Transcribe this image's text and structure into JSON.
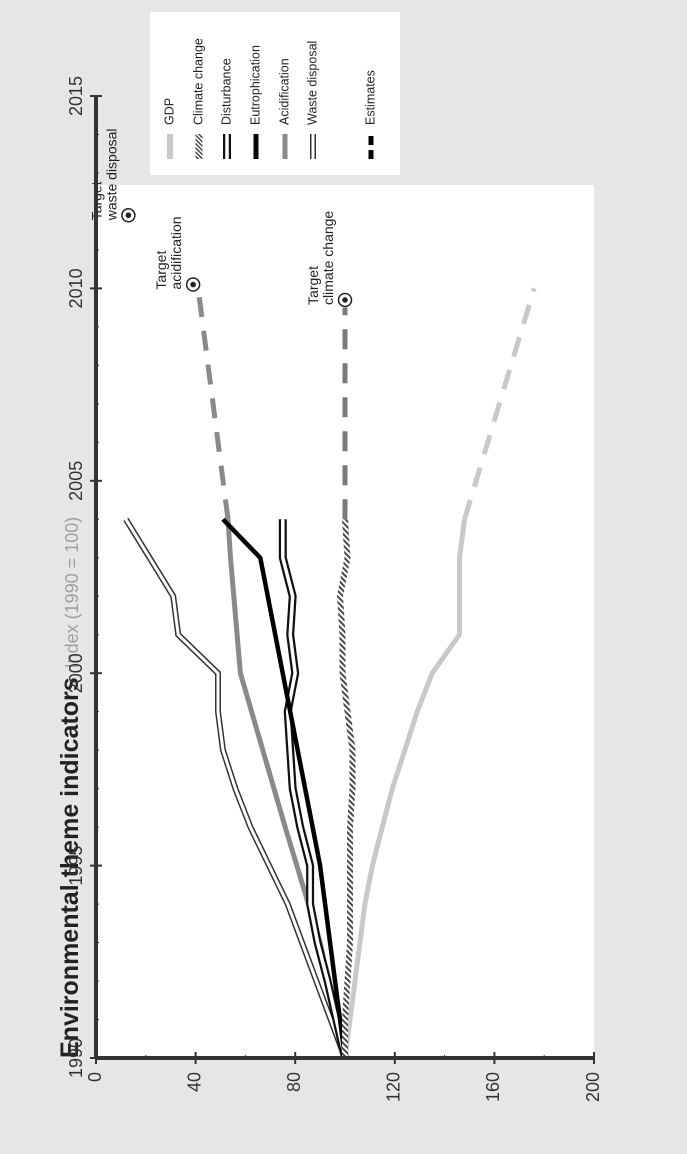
{
  "chart_data": {
    "type": "line",
    "title": "Environmental theme indicators",
    "subtitle": "Index (1990 = 100)",
    "x_ticks": [
      "1990",
      "1995",
      "2000",
      "2005",
      "2010",
      "2015"
    ],
    "y_ticks": [
      "0",
      "40",
      "80",
      "120",
      "160",
      "200"
    ],
    "xlim": [
      1990,
      2015
    ],
    "ylim": [
      0,
      200
    ],
    "legend": [
      {
        "key": "gdp",
        "label": "GDP"
      },
      {
        "key": "climate",
        "label": "Climate change"
      },
      {
        "key": "disturbance",
        "label": "Disturbance"
      },
      {
        "key": "eutro",
        "label": "Eutrophication"
      },
      {
        "key": "acid",
        "label": "Acidification"
      },
      {
        "key": "waste",
        "label": "Waste disposal"
      },
      {
        "key": "est",
        "label": "Estimates"
      }
    ],
    "series": [
      {
        "key": "gdp",
        "name": "GDP",
        "x": [
          1990,
          1991,
          1992,
          1993,
          1994,
          1995,
          1996,
          1997,
          1998,
          1999,
          2000,
          2001,
          2002,
          2003,
          2004
        ],
        "y": [
          100,
          102,
          104,
          106,
          108,
          111,
          115,
          119,
          124,
          129,
          135,
          146,
          146,
          146,
          148
        ],
        "estimate": {
          "x": [
            2004,
            2010
          ],
          "y": [
            148,
            176
          ]
        }
      },
      {
        "key": "climate",
        "name": "Climate change",
        "x": [
          1990,
          1991,
          1992,
          1993,
          1994,
          1995,
          1996,
          1997,
          1998,
          1999,
          2000,
          2001,
          2002,
          2003,
          2004
        ],
        "y": [
          100,
          100,
          101,
          102,
          102,
          102,
          102,
          103,
          103,
          101,
          99,
          99,
          98,
          101,
          100
        ],
        "estimate": {
          "x": [
            2004,
            2009.5
          ],
          "y": [
            100,
            100
          ]
        }
      },
      {
        "key": "disturbance",
        "name": "Disturbance",
        "x": [
          1990,
          1992,
          1993,
          1994,
          1995,
          1996,
          1997,
          1998,
          1999,
          2000,
          2001,
          2002,
          2003,
          2004
        ],
        "y": [
          100,
          93,
          89,
          86,
          86,
          82,
          79,
          78,
          77,
          80,
          78,
          79,
          75,
          75
        ]
      },
      {
        "key": "eutro",
        "name": "Eutrophication",
        "x": [
          1990,
          1995,
          2003,
          2004
        ],
        "y": [
          100,
          90,
          66,
          51
        ]
      },
      {
        "key": "acid",
        "name": "Acidification",
        "x": [
          1990,
          1993,
          1996,
          2000,
          2003,
          2004
        ],
        "y": [
          100,
          90,
          76,
          58,
          54,
          53
        ],
        "estimate": {
          "x": [
            2004,
            2010
          ],
          "y": [
            53,
            41
          ]
        }
      },
      {
        "key": "waste",
        "name": "Waste disposal",
        "x": [
          1990,
          1994,
          1996,
          1997,
          1998,
          1999,
          2000,
          2001,
          2002,
          2004
        ],
        "y": [
          100,
          77,
          62,
          56,
          51,
          49,
          49,
          33,
          31,
          12
        ]
      }
    ],
    "targets": [
      {
        "key": "climate",
        "label_lines": [
          "Target",
          "climate change"
        ],
        "x": 2009.7,
        "y": 100
      },
      {
        "key": "acid",
        "label_lines": [
          "Target",
          "acidification"
        ],
        "x": 2010.1,
        "y": 39
      },
      {
        "key": "waste",
        "label_lines": [
          "Target",
          "waste disposal"
        ],
        "x": 2011.9,
        "y": 13
      }
    ],
    "colors": {
      "gdp": "#c8c8c8",
      "climate": "#5a5a5a",
      "disturbance": "#111111",
      "eutro": "#000000",
      "acid": "#8a8a8a",
      "waste": "#333333",
      "estimate_climate": "#7a7a7a",
      "estimate_acid": "#8a8a8a",
      "background": "#e6e6e6",
      "plot": "#ffffff",
      "axis": "#333333",
      "subtitle": "#a0a0a0"
    }
  }
}
